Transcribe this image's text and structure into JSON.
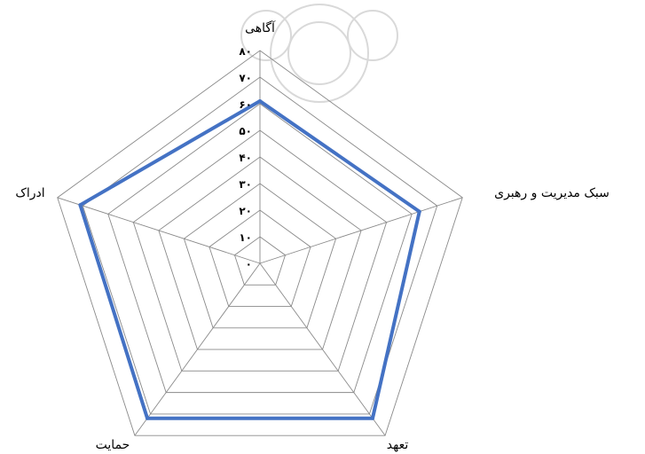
{
  "chart_data": {
    "type": "radar",
    "axes": [
      "آگاهی",
      "سبک مدیریت و رهبری",
      "تعهد",
      "حمایت",
      "ادراک"
    ],
    "rlim": [
      0,
      80
    ],
    "ticks": [
      "۰",
      "۱۰",
      "۲۰",
      "۳۰",
      "۴۰",
      "۵۰",
      "۶۰",
      "۷۰",
      "۸۰"
    ],
    "tick_values": [
      0,
      10,
      20,
      30,
      40,
      50,
      60,
      70,
      80
    ],
    "series": [
      {
        "values": [
          61,
          63,
          72,
          72,
          71
        ],
        "color": "#4472c4"
      }
    ],
    "grid": true
  }
}
